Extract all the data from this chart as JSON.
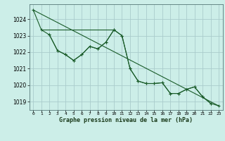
{
  "title": "Graphe pression niveau de la mer (hPa)",
  "bg_color": "#cceee8",
  "grid_color": "#aacccc",
  "line_color": "#1a5c2a",
  "xlim": [
    -0.5,
    23.5
  ],
  "ylim": [
    1018.5,
    1024.9
  ],
  "yticks": [
    1019,
    1020,
    1021,
    1022,
    1023,
    1024
  ],
  "xticks": [
    0,
    1,
    2,
    3,
    4,
    5,
    6,
    7,
    8,
    9,
    10,
    11,
    12,
    13,
    14,
    15,
    16,
    17,
    18,
    19,
    20,
    21,
    22,
    23
  ],
  "line_main": {
    "x": [
      0,
      1,
      2,
      3,
      4,
      5,
      6,
      7,
      8,
      9,
      10,
      11,
      12,
      13,
      14,
      15,
      16,
      17,
      18,
      19,
      20,
      21,
      22
    ],
    "y": [
      1024.55,
      1023.35,
      1023.05,
      1022.1,
      1021.85,
      1021.5,
      1021.85,
      1022.35,
      1022.2,
      1022.6,
      1023.35,
      1023.0,
      1021.0,
      1020.25,
      1020.1,
      1020.1,
      1020.15,
      1019.5,
      1019.5,
      1019.75,
      1019.9,
      1019.3,
      1018.9
    ]
  },
  "line_flat": {
    "x": [
      1,
      2,
      3,
      4,
      5,
      6,
      7,
      8,
      9,
      10
    ],
    "y": [
      1023.35,
      1023.35,
      1023.35,
      1023.35,
      1023.35,
      1023.35,
      1023.35,
      1023.35,
      1023.35,
      1023.35
    ]
  },
  "line_diag": {
    "x": [
      0,
      23
    ],
    "y": [
      1024.55,
      1018.75
    ]
  },
  "line_lower": {
    "x": [
      2,
      3,
      4,
      5,
      6,
      7,
      8,
      9,
      10,
      11,
      12,
      13,
      14,
      15,
      16,
      17,
      18,
      19,
      20,
      21,
      22,
      23
    ],
    "y": [
      1023.05,
      1022.1,
      1021.85,
      1021.5,
      1021.85,
      1022.35,
      1022.2,
      1022.6,
      1023.35,
      1023.0,
      1021.0,
      1020.25,
      1020.1,
      1020.1,
      1020.15,
      1019.5,
      1019.5,
      1019.75,
      1019.9,
      1019.3,
      1018.9,
      1018.75
    ]
  }
}
